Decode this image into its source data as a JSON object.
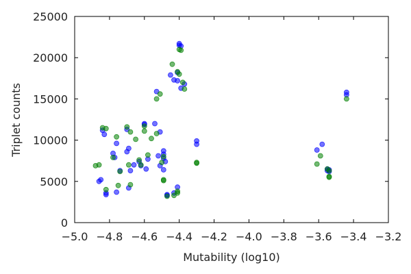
{
  "chart_data": {
    "type": "scatter",
    "xlabel": "Mutability (log10)",
    "ylabel": "Triplet counts",
    "xlim": [
      -5.0,
      -3.2
    ],
    "ylim": [
      0,
      25000
    ],
    "x_ticks": [
      -5.0,
      -4.8,
      -4.6,
      -4.4,
      -4.2,
      -4.0,
      -3.8,
      -3.6,
      -3.4,
      -3.2
    ],
    "x_tick_labels": [
      "−5.0",
      "−4.8",
      "−4.6",
      "−4.4",
      "−4.2",
      "−4.0",
      "−3.8",
      "−3.6",
      "−3.4",
      "−3.2"
    ],
    "y_ticks": [
      0,
      5000,
      10000,
      15000,
      20000,
      25000
    ],
    "y_tick_labels": [
      "0",
      "5000",
      "10000",
      "15000",
      "20000",
      "25000"
    ],
    "grid": false,
    "legend": false,
    "series": [
      {
        "color": "#0000ff",
        "points": [
          [
            -4.85,
            5200
          ],
          [
            -4.86,
            5000
          ],
          [
            -4.84,
            11200
          ],
          [
            -4.83,
            10700
          ],
          [
            -4.82,
            3400
          ],
          [
            -4.82,
            3600
          ],
          [
            -4.78,
            8400
          ],
          [
            -4.77,
            7900
          ],
          [
            -4.76,
            9600
          ],
          [
            -4.76,
            3700
          ],
          [
            -4.74,
            6300
          ],
          [
            -4.7,
            11300
          ],
          [
            -4.69,
            9000
          ],
          [
            -4.7,
            8600
          ],
          [
            -4.68,
            6300
          ],
          [
            -4.69,
            4200
          ],
          [
            -4.66,
            7000
          ],
          [
            -4.63,
            7400
          ],
          [
            -4.62,
            6900
          ],
          [
            -4.6,
            12000
          ],
          [
            -4.6,
            11900
          ],
          [
            -4.59,
            6500
          ],
          [
            -4.58,
            7700
          ],
          [
            -4.54,
            12000
          ],
          [
            -4.53,
            15900
          ],
          [
            -4.52,
            8100
          ],
          [
            -4.51,
            11000
          ],
          [
            -4.51,
            6900
          ],
          [
            -4.49,
            8700
          ],
          [
            -4.49,
            8300
          ],
          [
            -4.49,
            7800
          ],
          [
            -4.48,
            7400
          ],
          [
            -4.49,
            6400
          ],
          [
            -4.47,
            3400
          ],
          [
            -4.47,
            3300
          ],
          [
            -4.45,
            17900
          ],
          [
            -4.43,
            17300
          ],
          [
            -4.43,
            3600
          ],
          [
            -4.41,
            18200
          ],
          [
            -4.41,
            17200
          ],
          [
            -4.41,
            4300
          ],
          [
            -4.4,
            21700
          ],
          [
            -4.4,
            21500
          ],
          [
            -4.39,
            21400
          ],
          [
            -4.39,
            16300
          ],
          [
            -4.37,
            16800
          ],
          [
            -4.3,
            9900
          ],
          [
            -4.3,
            9500
          ],
          [
            -3.61,
            8800
          ],
          [
            -3.58,
            9500
          ],
          [
            -3.55,
            6500
          ],
          [
            -3.55,
            6300
          ],
          [
            -3.54,
            6400
          ],
          [
            -3.54,
            6200
          ],
          [
            -3.44,
            15800
          ],
          [
            -3.44,
            15500
          ]
        ]
      },
      {
        "color": "#008000",
        "points": [
          [
            -4.88,
            6900
          ],
          [
            -4.86,
            7000
          ],
          [
            -4.84,
            11500
          ],
          [
            -4.82,
            11400
          ],
          [
            -4.82,
            4000
          ],
          [
            -4.78,
            7900
          ],
          [
            -4.76,
            10400
          ],
          [
            -4.75,
            4500
          ],
          [
            -4.74,
            6200
          ],
          [
            -4.7,
            11600
          ],
          [
            -4.68,
            11000
          ],
          [
            -4.69,
            7000
          ],
          [
            -4.68,
            4600
          ],
          [
            -4.65,
            10100
          ],
          [
            -4.63,
            7600
          ],
          [
            -4.62,
            7000
          ],
          [
            -4.6,
            11700
          ],
          [
            -4.6,
            11100
          ],
          [
            -4.58,
            8200
          ],
          [
            -4.56,
            10200
          ],
          [
            -4.53,
            10800
          ],
          [
            -4.53,
            15000
          ],
          [
            -4.51,
            15600
          ],
          [
            -4.5,
            7300
          ],
          [
            -4.49,
            8000
          ],
          [
            -4.49,
            5200
          ],
          [
            -4.49,
            5100
          ],
          [
            -4.47,
            3200
          ],
          [
            -4.44,
            19200
          ],
          [
            -4.43,
            3300
          ],
          [
            -4.41,
            18300
          ],
          [
            -4.41,
            3600
          ],
          [
            -4.41,
            3800
          ],
          [
            -4.4,
            18000
          ],
          [
            -4.4,
            21000
          ],
          [
            -4.39,
            20900
          ],
          [
            -4.38,
            17000
          ],
          [
            -4.37,
            16200
          ],
          [
            -4.3,
            7300
          ],
          [
            -4.3,
            7200
          ],
          [
            -3.61,
            7100
          ],
          [
            -3.59,
            8100
          ],
          [
            -3.55,
            6500
          ],
          [
            -3.54,
            6300
          ],
          [
            -3.54,
            5600
          ],
          [
            -3.54,
            5500
          ],
          [
            -3.44,
            15000
          ]
        ]
      }
    ]
  }
}
